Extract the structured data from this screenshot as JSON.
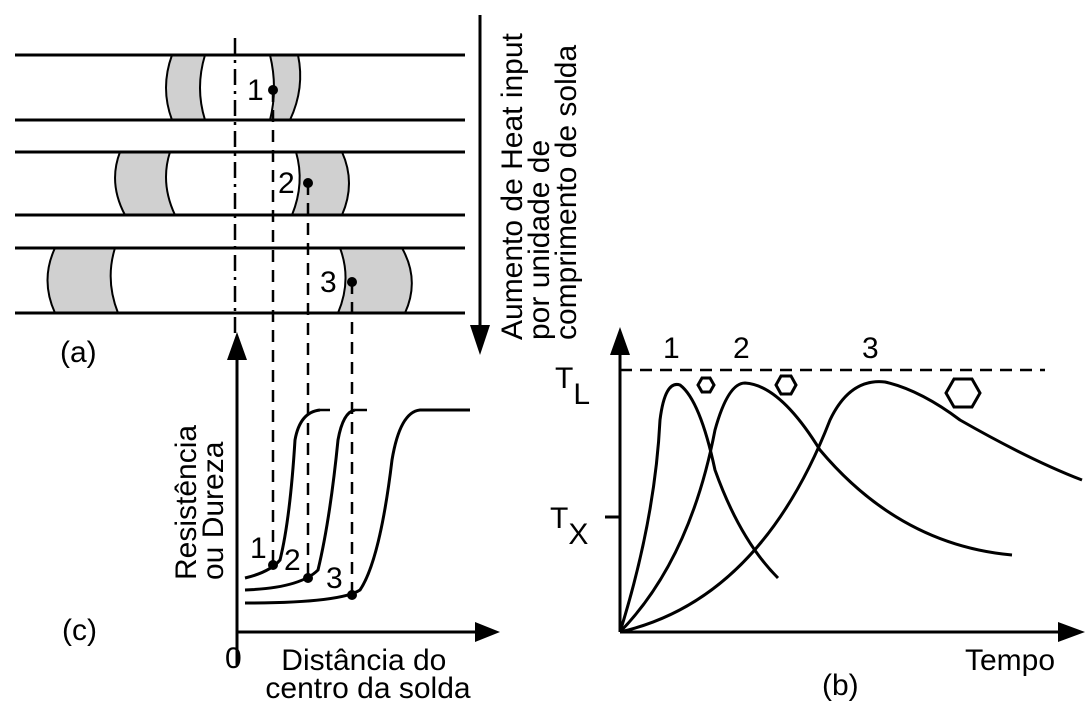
{
  "panel_a": {
    "label": "(a)",
    "points": [
      "1",
      "2",
      "3"
    ],
    "arrow_label": [
      "Aumento de Heat input",
      "por unidade de",
      "comprimento de solda"
    ]
  },
  "panel_b": {
    "label": "(b)",
    "curves": [
      "1",
      "2",
      "3"
    ],
    "y_labels": [
      {
        "main": "T",
        "sub": "L"
      },
      {
        "main": "T",
        "sub": "X"
      }
    ],
    "x_axis": "Tempo"
  },
  "panel_c": {
    "label": "(c)",
    "points": [
      "1",
      "2",
      "3"
    ],
    "y_axis": [
      "Resistência",
      "ou Dureza"
    ],
    "origin": "0",
    "x_axis": [
      "Distância do",
      "centro da solda"
    ]
  }
}
